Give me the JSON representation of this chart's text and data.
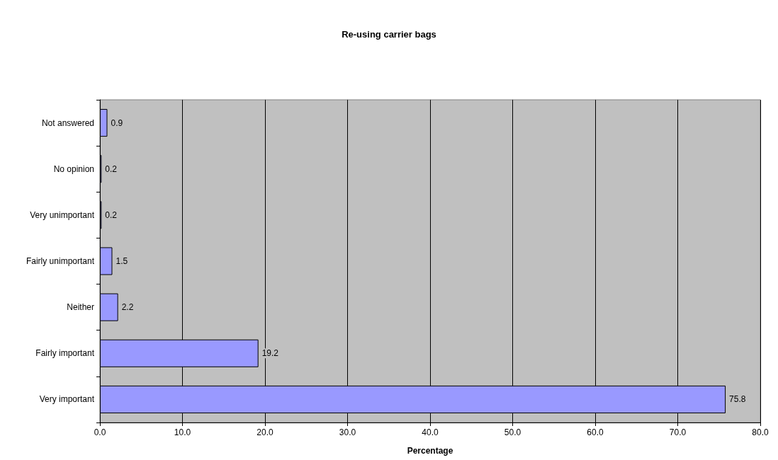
{
  "chart_data": {
    "type": "bar",
    "orientation": "horizontal",
    "title": "Re-using carrier bags",
    "xlabel": "Percentage",
    "categories": [
      "Not answered",
      "No opinion",
      "Very unimportant",
      "Fairly unimportant",
      "Neither",
      "Fairly important",
      "Very important"
    ],
    "values": [
      0.9,
      0.2,
      0.2,
      1.5,
      2.2,
      19.2,
      75.8
    ],
    "color": "#9999ff",
    "xlim": [
      0,
      80
    ],
    "xticks": [
      {
        "value": 0,
        "label": "0.0"
      },
      {
        "value": 10,
        "label": "10.0"
      },
      {
        "value": 20,
        "label": "20.0"
      },
      {
        "value": 30,
        "label": "30.0"
      },
      {
        "value": 40,
        "label": "40.0"
      },
      {
        "value": 50,
        "label": "50.0"
      },
      {
        "value": 60,
        "label": "60.0"
      },
      {
        "value": 70,
        "label": "70.0"
      },
      {
        "value": 80,
        "label": "80.0"
      }
    ],
    "grid": "x",
    "data_labels": true
  }
}
